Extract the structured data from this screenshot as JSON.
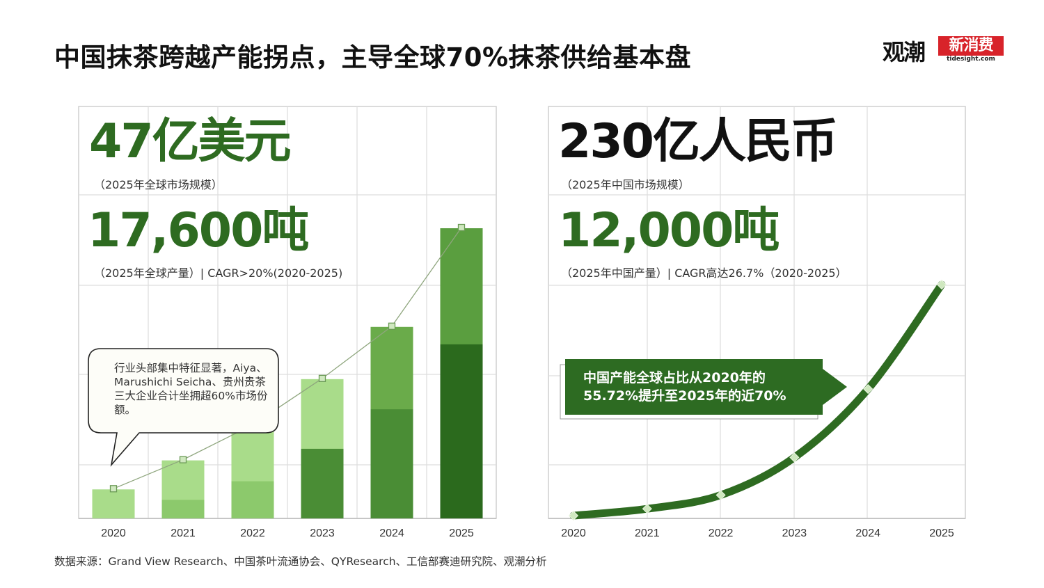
{
  "page": {
    "title": "中国抹茶跨越产能拐点，主导全球70%抹茶供给基本盘",
    "source": "数据来源：Grand View Research、中国茶叶流通协会、QYResearch、工信部赛迪研究院、观潮分析",
    "logo": {
      "left": "观潮",
      "right": "新消费",
      "sub": "tidesight.com"
    }
  },
  "left_panel": {
    "stat1_value": "47亿美元",
    "stat1_label": "（2025年全球市场规模）",
    "stat2_value": "17,600吨",
    "stat2_label": "（2025年全球产量）| CAGR>20%(2020-2025)",
    "callout": "行业头部集中特征显著，Aiya、Marushichi Seicha、贵州贵茶三大企业合计坐拥超60%市场份额。"
  },
  "right_panel": {
    "stat1_value": "230亿人民币",
    "stat1_label": "（2025年中国市场规模）",
    "stat2_value": "12,000吨",
    "stat2_label": "（2025年中国产量）| CAGR高达26.7%（2020-2025）",
    "banner": "中国产能全球占比从2020年的55.72%提升至2025年的近70%"
  },
  "colors": {
    "light": "#a9dc8a",
    "light_bottom": "#8cc96c",
    "mid": "#6aab4a",
    "mid_bottom": "#4a8d35",
    "dark_top": "#5a9e3f",
    "dark_bottom": "#2b6a1d",
    "curve": "#2e6b21",
    "banner": "#2d6b22",
    "stat_green": "#2e6b21"
  },
  "chart_data": [
    {
      "type": "bar",
      "categories": [
        "2020",
        "2021",
        "2022",
        "2023",
        "2024",
        "2025"
      ],
      "series": [
        {
          "name": "",
          "values": [
            2500,
            5000,
            8000,
            12000,
            16500,
            25000
          ]
        }
      ],
      "stacked_lower_segment": [
        0,
        1600,
        3200,
        6000,
        9400,
        15000
      ],
      "trend_line": [
        2500,
        5000,
        8000,
        12000,
        16500,
        25000
      ],
      "title": "",
      "xlabel": "",
      "ylabel": "",
      "ylim": [
        0,
        25000
      ],
      "grid": true
    },
    {
      "type": "line",
      "x": [
        "2020",
        "2021",
        "2022",
        "2023",
        "2024",
        "2025"
      ],
      "series": [
        {
          "name": "",
          "values": [
            0,
            4,
            12,
            34,
            74,
            135
          ]
        }
      ],
      "title": "",
      "xlabel": "",
      "ylabel": "",
      "ylim": [
        0,
        135
      ],
      "grid": true
    }
  ]
}
